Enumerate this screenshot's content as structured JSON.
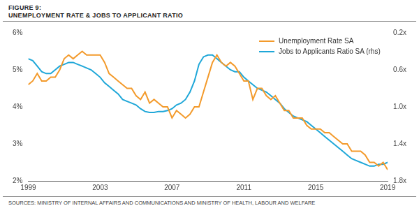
{
  "chart_data": {
    "type": "line",
    "title": "FIGURE 9:",
    "subtitle": "UNEMPLOYMENT RATE & JOBS TO APPLICANT RATIO",
    "source": "SOURCES: MINISTRY OF INTERNAL AFFAIRS AND COMMUNICATIONS AND MINISTRY OF HEALTH, LABOUR AND WELFARE",
    "x": [
      1999,
      1999.25,
      1999.5,
      1999.75,
      2000,
      2000.25,
      2000.5,
      2000.75,
      2001,
      2001.25,
      2001.5,
      2001.75,
      2002,
      2002.25,
      2002.5,
      2002.75,
      2003,
      2003.25,
      2003.5,
      2003.75,
      2004,
      2004.25,
      2004.5,
      2004.75,
      2005,
      2005.25,
      2005.5,
      2005.75,
      2006,
      2006.25,
      2006.5,
      2006.75,
      2007,
      2007.25,
      2007.5,
      2007.75,
      2008,
      2008.25,
      2008.5,
      2008.75,
      2009,
      2009.25,
      2009.5,
      2009.75,
      2010,
      2010.25,
      2010.5,
      2010.75,
      2011,
      2011.25,
      2011.5,
      2011.75,
      2012,
      2012.25,
      2012.5,
      2012.75,
      2013,
      2013.25,
      2013.5,
      2013.75,
      2014,
      2014.25,
      2014.5,
      2014.75,
      2015,
      2015.25,
      2015.5,
      2015.75,
      2016,
      2016.25,
      2016.5,
      2016.75,
      2017,
      2017.25,
      2017.5,
      2017.75,
      2018,
      2018.25,
      2018.5,
      2018.75,
      2019
    ],
    "series": [
      {
        "name": "Unemployment Rate SA",
        "color": "#f39a2b",
        "axis": "y",
        "values": [
          4.6,
          4.7,
          4.9,
          4.7,
          4.7,
          4.8,
          4.8,
          5.0,
          5.3,
          5.4,
          5.3,
          5.4,
          5.5,
          5.4,
          5.4,
          5.4,
          5.4,
          5.2,
          4.9,
          4.8,
          4.7,
          4.6,
          4.5,
          4.5,
          4.3,
          4.2,
          4.4,
          4.1,
          4.2,
          4.1,
          4.0,
          4.0,
          3.7,
          3.9,
          3.8,
          3.7,
          3.8,
          4.0,
          4.0,
          4.4,
          4.8,
          5.2,
          5.4,
          5.2,
          5.1,
          5.2,
          5.1,
          4.9,
          4.7,
          4.7,
          4.2,
          4.5,
          4.5,
          4.3,
          4.2,
          4.3,
          4.1,
          3.9,
          3.9,
          3.7,
          3.7,
          3.7,
          3.5,
          3.4,
          3.4,
          3.4,
          3.3,
          3.3,
          3.2,
          3.1,
          3.0,
          3.0,
          2.8,
          2.8,
          2.8,
          2.7,
          2.5,
          2.5,
          2.4,
          2.5,
          2.3
        ]
      },
      {
        "name": "Jobs to Applicants Ratio SA (rhs)",
        "color": "#1fa7d8",
        "axis": "y2",
        "values": [
          0.48,
          0.5,
          0.56,
          0.62,
          0.64,
          0.64,
          0.6,
          0.56,
          0.54,
          0.52,
          0.52,
          0.54,
          0.56,
          0.58,
          0.6,
          0.64,
          0.68,
          0.74,
          0.78,
          0.82,
          0.86,
          0.92,
          0.94,
          0.96,
          0.98,
          1.02,
          1.05,
          1.06,
          1.06,
          1.05,
          1.05,
          1.04,
          1.02,
          0.98,
          0.96,
          0.92,
          0.84,
          0.72,
          0.54,
          0.46,
          0.44,
          0.44,
          0.48,
          0.52,
          0.56,
          0.6,
          0.62,
          0.62,
          0.68,
          0.72,
          0.76,
          0.8,
          0.82,
          0.84,
          0.88,
          0.92,
          0.96,
          1.02,
          1.06,
          1.1,
          1.12,
          1.14,
          1.16,
          1.2,
          1.24,
          1.28,
          1.32,
          1.36,
          1.4,
          1.44,
          1.48,
          1.52,
          1.56,
          1.58,
          1.6,
          1.62,
          1.64,
          1.64,
          1.62,
          1.62,
          1.6
        ]
      }
    ],
    "xlim": [
      1999,
      2019
    ],
    "xticks": [
      1999,
      2003,
      2007,
      2011,
      2015,
      2019
    ],
    "ylim": [
      2,
      6
    ],
    "yticks": [
      {
        "value": 2,
        "label": "2%"
      },
      {
        "value": 3,
        "label": "3%"
      },
      {
        "value": 4,
        "label": "4%"
      },
      {
        "value": 5,
        "label": "5%"
      },
      {
        "value": 6,
        "label": "6%"
      }
    ],
    "y2lim": [
      1.8,
      0.2
    ],
    "y2ticks": [
      {
        "value": 0.2,
        "label": "0.2x"
      },
      {
        "value": 0.6,
        "label": "0.6x"
      },
      {
        "value": 1.0,
        "label": "1.0x"
      },
      {
        "value": 1.4,
        "label": "1.4x"
      },
      {
        "value": 1.8,
        "label": "1.8x"
      }
    ],
    "grid": false,
    "legend": "upper right"
  }
}
